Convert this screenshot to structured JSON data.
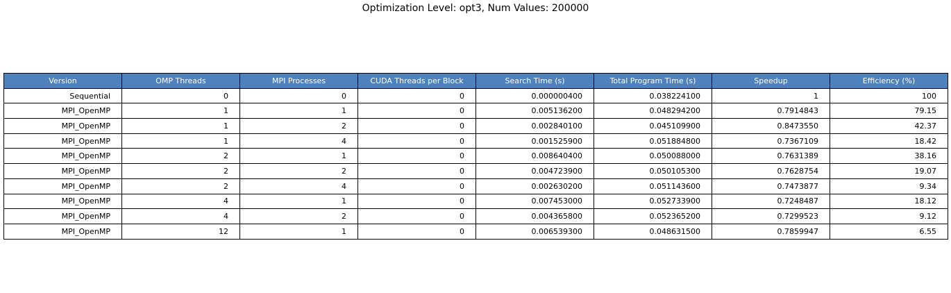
{
  "title": "Optimization Level: opt3, Num Values: 200000",
  "chart_data": {
    "type": "table",
    "title": "Optimization Level: opt3, Num Values: 200000",
    "columns": [
      "Version",
      "OMP Threads",
      "MPI Processes",
      "CUDA Threads per Block",
      "Search Time (s)",
      "Total Program Time (s)",
      "Speedup",
      "Efficiency (%)"
    ],
    "rows": [
      [
        "Sequential",
        "0",
        "0",
        "0",
        "0.000000400",
        "0.038224100",
        "1",
        "100"
      ],
      [
        "MPI_OpenMP",
        "1",
        "1",
        "0",
        "0.005136200",
        "0.048294200",
        "0.7914843",
        "79.15"
      ],
      [
        "MPI_OpenMP",
        "1",
        "2",
        "0",
        "0.002840100",
        "0.045109900",
        "0.8473550",
        "42.37"
      ],
      [
        "MPI_OpenMP",
        "1",
        "4",
        "0",
        "0.001525900",
        "0.051884800",
        "0.7367109",
        "18.42"
      ],
      [
        "MPI_OpenMP",
        "2",
        "1",
        "0",
        "0.008640400",
        "0.050088000",
        "0.7631389",
        "38.16"
      ],
      [
        "MPI_OpenMP",
        "2",
        "2",
        "0",
        "0.004723900",
        "0.050105300",
        "0.7628754",
        "19.07"
      ],
      [
        "MPI_OpenMP",
        "2",
        "4",
        "0",
        "0.002630200",
        "0.051143600",
        "0.7473877",
        "9.34"
      ],
      [
        "MPI_OpenMP",
        "4",
        "1",
        "0",
        "0.007453000",
        "0.052733900",
        "0.7248487",
        "18.12"
      ],
      [
        "MPI_OpenMP",
        "4",
        "2",
        "0",
        "0.004365800",
        "0.052365200",
        "0.7299523",
        "9.12"
      ],
      [
        "MPI_OpenMP",
        "12",
        "1",
        "0",
        "0.006539300",
        "0.048631500",
        "0.7859947",
        "6.55"
      ]
    ],
    "header_color": "#4f81bd",
    "header_text_color": "#ffffff",
    "cell_color": "#ffffff"
  }
}
